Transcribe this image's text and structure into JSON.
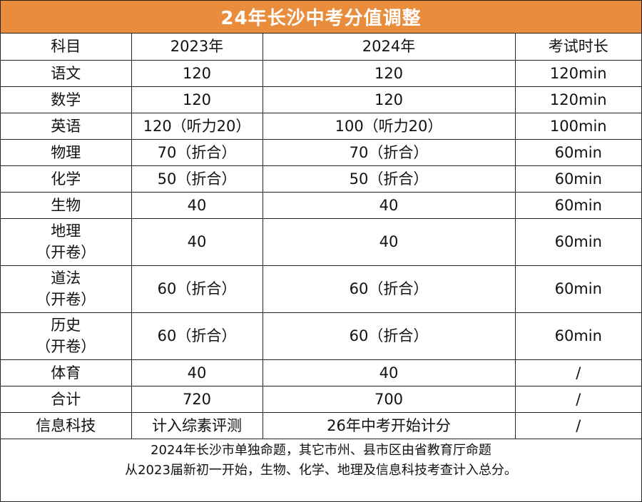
{
  "title": "24年长沙中考分值调整",
  "headers": [
    "科目",
    "2023年",
    "2024年",
    "考试时长"
  ],
  "rows": [
    {
      "subject": [
        "语文"
      ],
      "y2023": "120",
      "y2024": "120",
      "duration": "120min"
    },
    {
      "subject": [
        "数学"
      ],
      "y2023": "120",
      "y2024": "120",
      "duration": "120min"
    },
    {
      "subject": [
        "英语"
      ],
      "y2023": "120（听力20）",
      "y2024": "100（听力20）",
      "duration": "100min"
    },
    {
      "subject": [
        "物理"
      ],
      "y2023": "70（折合）",
      "y2024": "70（折合）",
      "duration": "60min"
    },
    {
      "subject": [
        "化学"
      ],
      "y2023": "50（折合）",
      "y2024": "50（折合）",
      "duration": "60min"
    },
    {
      "subject": [
        "生物"
      ],
      "y2023": "40",
      "y2024": "40",
      "duration": "60min"
    },
    {
      "subject": [
        "地理",
        "（开卷）"
      ],
      "y2023": "40",
      "y2024": "40",
      "duration": "60min"
    },
    {
      "subject": [
        "道法",
        "（开卷）"
      ],
      "y2023": "60（折合）",
      "y2024": "60（折合）",
      "duration": "60min"
    },
    {
      "subject": [
        "历史",
        "（开卷）"
      ],
      "y2023": "60（折合）",
      "y2024": "60（折合）",
      "duration": "60min"
    },
    {
      "subject": [
        "体育"
      ],
      "y2023": "40",
      "y2024": "40",
      "duration": "/"
    },
    {
      "subject": [
        "合计"
      ],
      "y2023": "720",
      "y2024": "700",
      "duration": "/"
    },
    {
      "subject": [
        "信息科技"
      ],
      "y2023": "计入综素评测",
      "y2024": "26年中考开始计分",
      "duration": "/"
    }
  ],
  "notes": [
    "2024年长沙市单独命题，其它市州、县市区由省教育厅命题",
    "从2023届新初一开始，生物、化学、地理及信息科技考查计入总分。"
  ]
}
